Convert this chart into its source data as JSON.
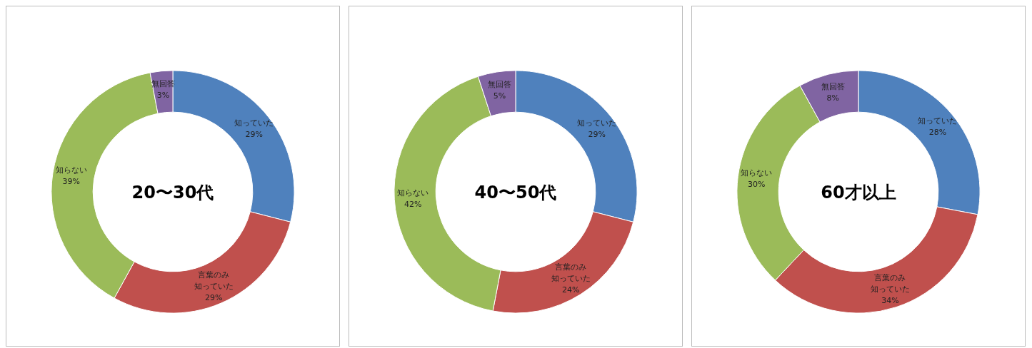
{
  "chart_data": [
    {
      "type": "donut",
      "title": "20〜30代",
      "categories": [
        "知っていた",
        "言葉のみ知っていた",
        "知らない",
        "無回答"
      ],
      "values": [
        29,
        29,
        39,
        3
      ],
      "value_labels": [
        "29%",
        "29%",
        "39%",
        "3%"
      ],
      "colors": [
        "#4f81bd",
        "#c0504d",
        "#9bbb59",
        "#8064a2"
      ]
    },
    {
      "type": "donut",
      "title": "40〜50代",
      "categories": [
        "知っていた",
        "言葉のみ知っていた",
        "知らない",
        "無回答"
      ],
      "values": [
        29,
        24,
        42,
        5
      ],
      "value_labels": [
        "29%",
        "24%",
        "42%",
        "5%"
      ],
      "colors": [
        "#4f81bd",
        "#c0504d",
        "#9bbb59",
        "#8064a2"
      ]
    },
    {
      "type": "donut",
      "title": "60才以上",
      "categories": [
        "知っていた",
        "言葉のみ知っていた",
        "知らない",
        "無回答"
      ],
      "values": [
        28,
        34,
        30,
        8
      ],
      "value_labels": [
        "28%",
        "34%",
        "30%",
        "8%"
      ],
      "colors": [
        "#4f81bd",
        "#c0504d",
        "#9bbb59",
        "#8064a2"
      ]
    }
  ]
}
